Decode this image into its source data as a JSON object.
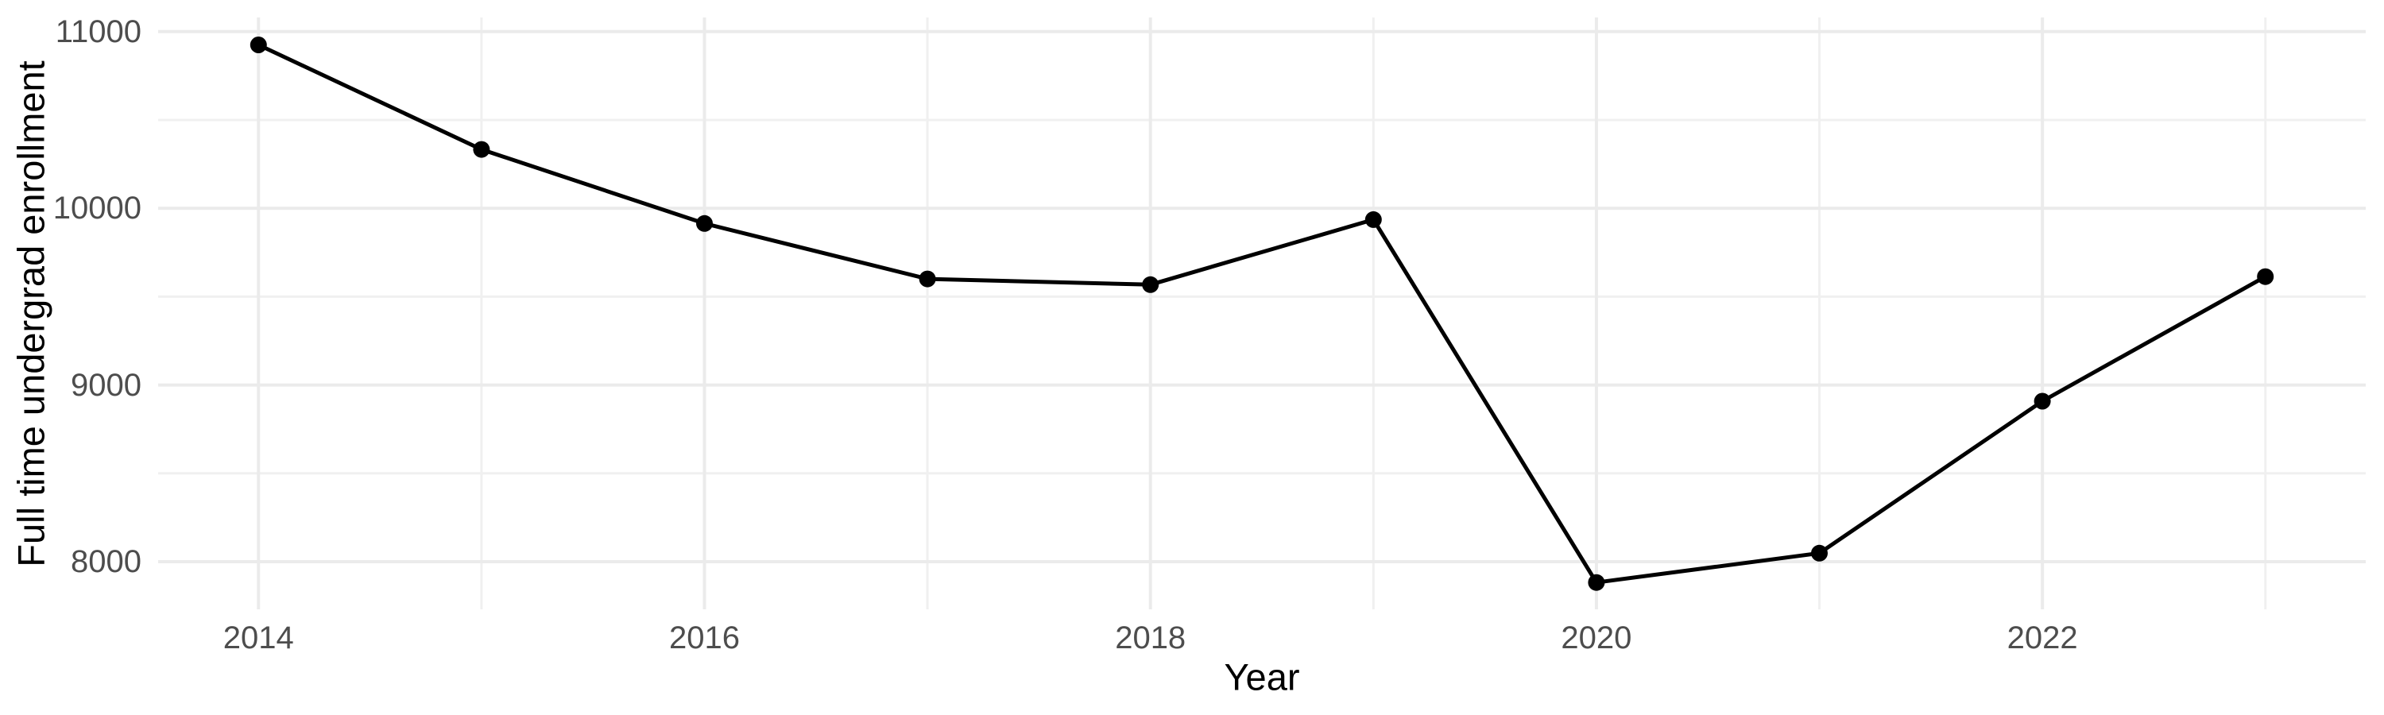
{
  "chart_data": {
    "type": "line",
    "title": "",
    "xlabel": "Year",
    "ylabel": "Full time undergrad enrollment",
    "x": [
      2014,
      2015,
      2016,
      2017,
      2018,
      2019,
      2020,
      2021,
      2022,
      2023
    ],
    "series": [
      {
        "name": "Full time undergrad enrollment",
        "values": [
          10925,
          10333,
          9914,
          9600,
          9568,
          9936,
          7882,
          8048,
          8908,
          9613
        ]
      }
    ],
    "xticks": {
      "values": [
        2014,
        2016,
        2018,
        2020,
        2022
      ],
      "labels": [
        "2014",
        "2016",
        "2018",
        "2020",
        "2022"
      ]
    },
    "yticks": {
      "values": [
        8000,
        9000,
        10000,
        11000
      ],
      "labels": [
        "8000",
        "9000",
        "10000",
        "11000"
      ]
    },
    "x_minor_breaks": [
      2015,
      2017,
      2019,
      2021,
      2023
    ],
    "y_minor_breaks": [
      8500,
      9500,
      10500
    ],
    "xlim": [
      2013.55,
      2023.45
    ],
    "ylim": [
      7730,
      11080
    ],
    "grid": "major-and-minor, no axis lines, no tick marks",
    "legend": "none",
    "colors": {
      "line": "#000000",
      "point": "#000000",
      "grid_major": "#ebebeb",
      "grid_minor": "#f0f0f0",
      "tick_label": "#4d4d4d",
      "axis_title": "#000000",
      "background": "#ffffff"
    }
  }
}
